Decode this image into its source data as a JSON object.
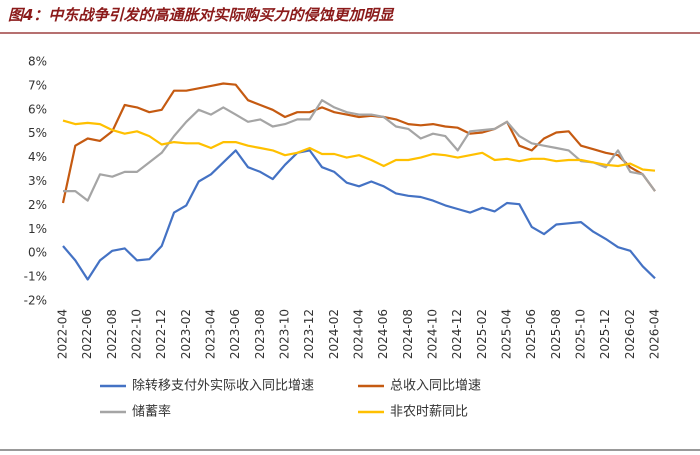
{
  "chart_data": {
    "type": "line",
    "title": "图4：中东战争引发的高通胀对实际购买力的侵蚀更加明显",
    "categories": [
      "2022-04",
      null,
      "2022-06",
      null,
      "2022-08",
      null,
      "2022-10",
      null,
      "2022-12",
      null,
      "2023-02",
      null,
      "2023-04",
      null,
      "2023-06",
      null,
      "2023-08",
      null,
      "2023-10",
      null,
      "2023-12",
      null,
      "2024-02",
      null,
      "2024-04",
      null,
      "2024-06",
      null,
      "2024-08",
      null,
      "2024-10",
      null,
      "2024-12",
      null,
      "2025-02",
      null,
      "2025-04",
      null,
      "2025-06",
      null,
      "2025-08",
      null,
      "2025-10",
      null,
      "2025-12",
      null,
      "2026-02",
      null,
      "2026-04"
    ],
    "series": [
      {
        "name": "除转移支付外实际收入同比增速",
        "color": "#4472c4",
        "values": [
          0.3,
          -0.3,
          -1.1,
          -0.3,
          0.1,
          0.2,
          -0.3,
          -0.25,
          0.3,
          1.7,
          2.0,
          3.0,
          3.3,
          3.8,
          4.3,
          3.6,
          3.4,
          3.1,
          3.7,
          4.2,
          4.3,
          3.6,
          3.4,
          2.95,
          2.8,
          3.0,
          2.8,
          2.5,
          2.4,
          2.35,
          2.2,
          2.0,
          1.85,
          1.7,
          1.9,
          1.75,
          2.1,
          2.05,
          1.1,
          0.8,
          1.2,
          1.25,
          1.3,
          0.9,
          0.6,
          0.25,
          0.1,
          -0.55,
          -1.05
        ]
      },
      {
        "name": "总收入同比增速",
        "color": "#c55a11",
        "values": [
          2.1,
          4.5,
          4.8,
          4.7,
          5.1,
          6.2,
          6.1,
          5.9,
          6.0,
          6.8,
          6.8,
          6.9,
          7.0,
          7.1,
          7.05,
          6.4,
          6.2,
          6.0,
          5.7,
          5.9,
          5.9,
          6.1,
          5.9,
          5.8,
          5.7,
          5.75,
          5.7,
          5.6,
          5.4,
          5.35,
          5.4,
          5.3,
          5.25,
          5.0,
          5.05,
          5.2,
          5.5,
          4.5,
          4.3,
          4.8,
          5.05,
          5.1,
          4.5,
          4.35,
          4.2,
          4.1,
          3.6,
          3.3,
          2.6
        ]
      },
      {
        "name": "储蓄率",
        "color": "#a5a5a5",
        "values": [
          2.6,
          2.6,
          2.2,
          3.3,
          3.2,
          3.4,
          3.4,
          3.8,
          4.2,
          4.9,
          5.5,
          6.0,
          5.8,
          6.1,
          5.8,
          5.5,
          5.6,
          5.3,
          5.4,
          5.6,
          5.6,
          6.4,
          6.1,
          5.9,
          5.8,
          5.8,
          5.7,
          5.3,
          5.2,
          4.8,
          5.0,
          4.9,
          4.3,
          5.1,
          5.15,
          5.2,
          5.5,
          4.9,
          4.6,
          4.5,
          4.4,
          4.3,
          3.85,
          3.8,
          3.6,
          4.3,
          3.4,
          3.3,
          2.6
        ]
      },
      {
        "name": "非农时薪同比",
        "color": "#ffc000",
        "values": [
          5.55,
          5.4,
          5.45,
          5.4,
          5.15,
          5.0,
          5.1,
          4.9,
          4.55,
          4.65,
          4.6,
          4.6,
          4.4,
          4.65,
          4.65,
          4.5,
          4.4,
          4.3,
          4.1,
          4.2,
          4.4,
          4.15,
          4.15,
          4.0,
          4.1,
          3.9,
          3.65,
          3.9,
          3.9,
          4.0,
          4.15,
          4.1,
          4.0,
          4.1,
          4.2,
          3.9,
          3.95,
          3.85,
          3.95,
          3.95,
          3.85,
          3.9,
          3.9,
          3.8,
          3.7,
          3.65,
          3.75,
          3.5,
          3.45
        ]
      }
    ],
    "ylim": [
      -2,
      8
    ],
    "yticks": [
      {
        "value": -2,
        "label": "-2%"
      },
      {
        "value": -1,
        "label": "-1%"
      },
      {
        "value": 0,
        "label": "0%"
      },
      {
        "value": 1,
        "label": "1%"
      },
      {
        "value": 2,
        "label": "2%"
      },
      {
        "value": 3,
        "label": "3%"
      },
      {
        "value": 4,
        "label": "4%"
      },
      {
        "value": 5,
        "label": "5%"
      },
      {
        "value": 6,
        "label": "6%"
      },
      {
        "value": 7,
        "label": "7%"
      },
      {
        "value": 8,
        "label": "8%"
      }
    ],
    "grid": false
  }
}
